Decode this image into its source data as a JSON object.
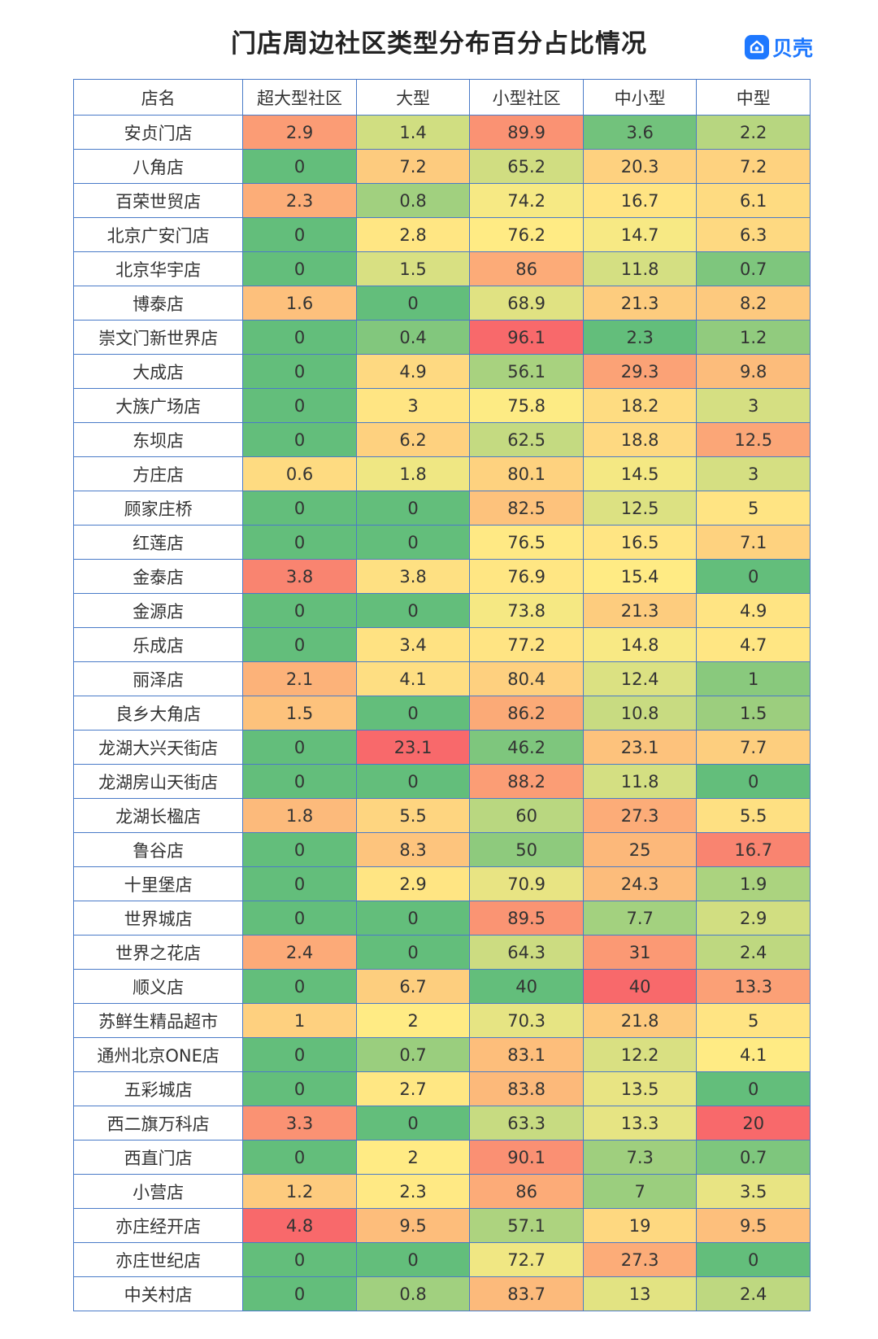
{
  "title": "门店周边社区类型分布百分占比情况",
  "logo": {
    "text": "贝壳",
    "icon": "beike-logo-icon",
    "color": "#1e78ff"
  },
  "chart_data": {
    "type": "heatmap",
    "color_scale": {
      "low": "#63be7b",
      "mid": "#ffeb84",
      "high": "#f8696b"
    },
    "columns": [
      "店名",
      "超大型社区",
      "大型",
      "小型社区",
      "中小型",
      "中型"
    ],
    "rows": [
      {
        "name": "安贞门店",
        "values": [
          2.9,
          1.4,
          89.9,
          3.6,
          2.2
        ]
      },
      {
        "name": "八角店",
        "values": [
          0,
          7.2,
          65.2,
          20.3,
          7.2
        ]
      },
      {
        "name": "百荣世贸店",
        "values": [
          2.3,
          0.8,
          74.2,
          16.7,
          6.1
        ]
      },
      {
        "name": "北京广安门店",
        "values": [
          0,
          2.8,
          76.2,
          14.7,
          6.3
        ]
      },
      {
        "name": "北京华宇店",
        "values": [
          0,
          1.5,
          86,
          11.8,
          0.7
        ]
      },
      {
        "name": "博泰店",
        "values": [
          1.6,
          0,
          68.9,
          21.3,
          8.2
        ]
      },
      {
        "name": "崇文门新世界店",
        "values": [
          0,
          0.4,
          96.1,
          2.3,
          1.2
        ]
      },
      {
        "name": "大成店",
        "values": [
          0,
          4.9,
          56.1,
          29.3,
          9.8
        ]
      },
      {
        "name": "大族广场店",
        "values": [
          0,
          3,
          75.8,
          18.2,
          3
        ]
      },
      {
        "name": "东坝店",
        "values": [
          0,
          6.2,
          62.5,
          18.8,
          12.5
        ]
      },
      {
        "name": "方庄店",
        "values": [
          0.6,
          1.8,
          80.1,
          14.5,
          3
        ]
      },
      {
        "name": "顾家庄桥",
        "values": [
          0,
          0,
          82.5,
          12.5,
          5
        ]
      },
      {
        "name": "红莲店",
        "values": [
          0,
          0,
          76.5,
          16.5,
          7.1
        ]
      },
      {
        "name": "金泰店",
        "values": [
          3.8,
          3.8,
          76.9,
          15.4,
          0
        ]
      },
      {
        "name": "金源店",
        "values": [
          0,
          0,
          73.8,
          21.3,
          4.9
        ]
      },
      {
        "name": "乐成店",
        "values": [
          0,
          3.4,
          77.2,
          14.8,
          4.7
        ]
      },
      {
        "name": "丽泽店",
        "values": [
          2.1,
          4.1,
          80.4,
          12.4,
          1
        ]
      },
      {
        "name": "良乡大角店",
        "values": [
          1.5,
          0,
          86.2,
          10.8,
          1.5
        ]
      },
      {
        "name": "龙湖大兴天街店",
        "values": [
          0,
          23.1,
          46.2,
          23.1,
          7.7
        ]
      },
      {
        "name": "龙湖房山天街店",
        "values": [
          0,
          0,
          88.2,
          11.8,
          0
        ]
      },
      {
        "name": "龙湖长楹店",
        "values": [
          1.8,
          5.5,
          60,
          27.3,
          5.5
        ]
      },
      {
        "name": "鲁谷店",
        "values": [
          0,
          8.3,
          50,
          25,
          16.7
        ]
      },
      {
        "name": "十里堡店",
        "values": [
          0,
          2.9,
          70.9,
          24.3,
          1.9
        ]
      },
      {
        "name": "世界城店",
        "values": [
          0,
          0,
          89.5,
          7.7,
          2.9
        ]
      },
      {
        "name": "世界之花店",
        "values": [
          2.4,
          0,
          64.3,
          31,
          2.4
        ]
      },
      {
        "name": "顺义店",
        "values": [
          0,
          6.7,
          40,
          40,
          13.3
        ]
      },
      {
        "name": "苏鲜生精品超市",
        "values": [
          1,
          2,
          70.3,
          21.8,
          5
        ]
      },
      {
        "name": "通州北京ONE店",
        "values": [
          0,
          0.7,
          83.1,
          12.2,
          4.1
        ]
      },
      {
        "name": "五彩城店",
        "values": [
          0,
          2.7,
          83.8,
          13.5,
          0
        ]
      },
      {
        "name": "西二旗万科店",
        "values": [
          3.3,
          0,
          63.3,
          13.3,
          20
        ]
      },
      {
        "name": "西直门店",
        "values": [
          0,
          2,
          90.1,
          7.3,
          0.7
        ]
      },
      {
        "name": "小营店",
        "values": [
          1.2,
          2.3,
          86,
          7,
          3.5
        ]
      },
      {
        "name": "亦庄经开店",
        "values": [
          4.8,
          9.5,
          57.1,
          19,
          9.5
        ]
      },
      {
        "name": "亦庄世纪店",
        "values": [
          0,
          0,
          72.7,
          27.3,
          0
        ]
      },
      {
        "name": "中关村店",
        "values": [
          0,
          0.8,
          83.7,
          13,
          2.4
        ]
      }
    ]
  }
}
